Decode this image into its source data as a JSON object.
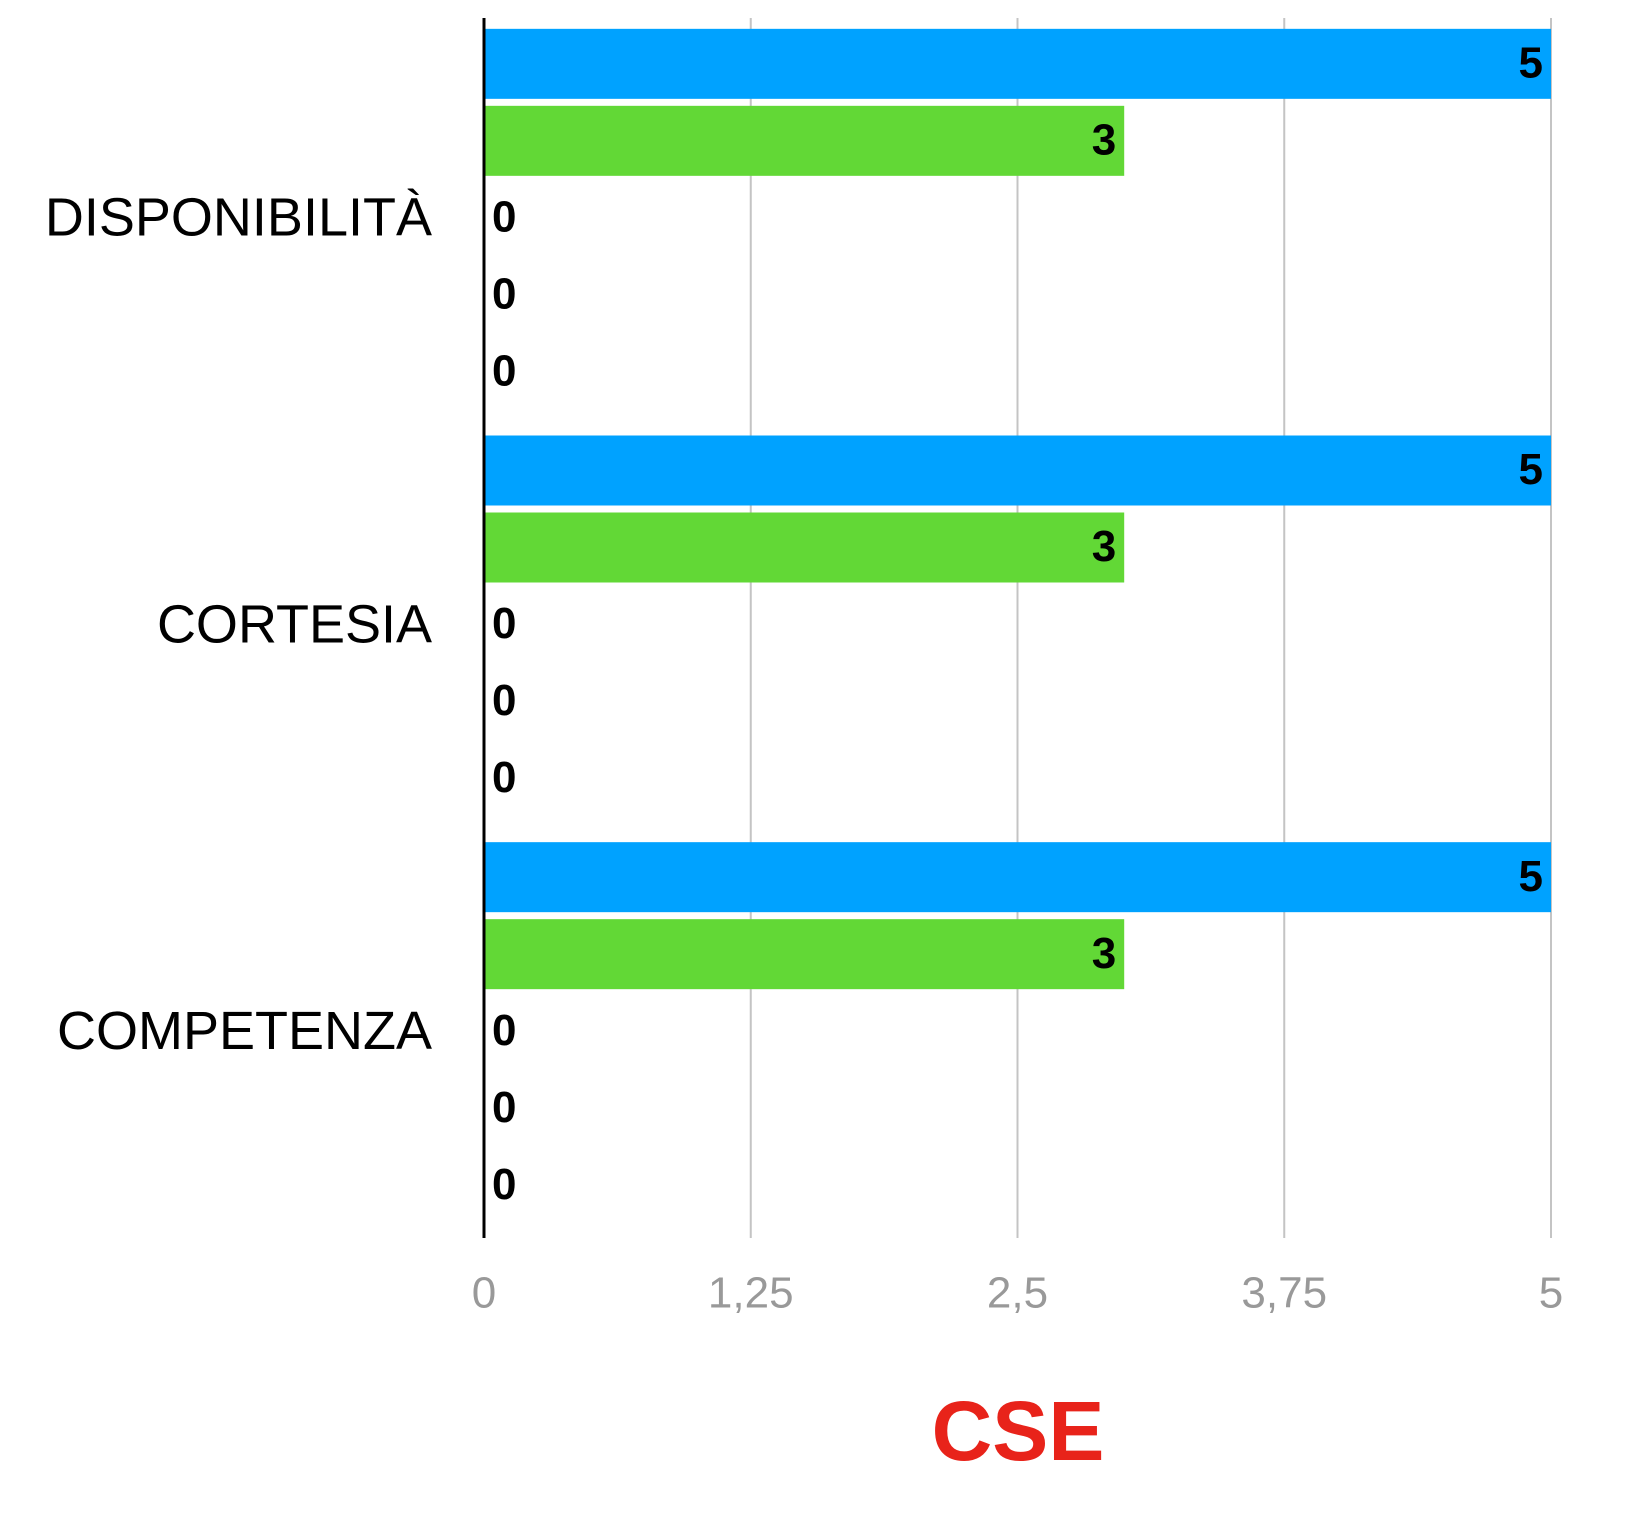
{
  "chart_data": {
    "type": "bar",
    "orientation": "horizontal",
    "x_label": "CSE",
    "categories": [
      "DISPONIBILITÀ",
      "CORTESIA",
      "COMPETENZA"
    ],
    "series": [
      {
        "color": "#00a2ff",
        "values": [
          5,
          5,
          5
        ]
      },
      {
        "color": "#62d836",
        "values": [
          3,
          3,
          3
        ]
      },
      {
        "values": [
          0,
          0,
          0
        ]
      },
      {
        "values": [
          0,
          0,
          0
        ]
      },
      {
        "values": [
          0,
          0,
          0
        ]
      }
    ],
    "xlim": [
      0,
      5
    ],
    "xticks": [
      0,
      {
        "value": 1.25,
        "label": "1,25"
      },
      {
        "value": 2.5,
        "label": "2,5"
      },
      {
        "value": 3.75,
        "label": "3,75"
      },
      5
    ],
    "grid": true,
    "data_labels": true
  }
}
